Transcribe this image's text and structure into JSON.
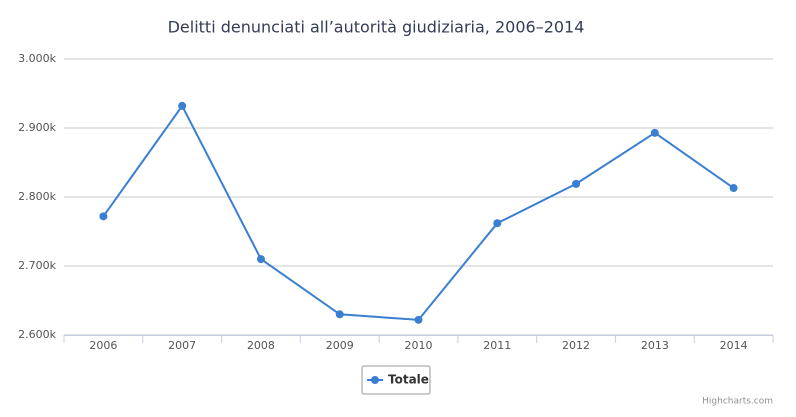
{
  "chart_data": {
    "type": "line",
    "title": "Delitti denunciati all’autorità giudiziaria, 2006–2014",
    "categories": [
      "2006",
      "2007",
      "2008",
      "2009",
      "2010",
      "2011",
      "2012",
      "2013",
      "2014"
    ],
    "series": [
      {
        "name": "Totale",
        "color": "#3a7fd1",
        "values": [
          2772,
          2932,
          2710,
          2630,
          2622,
          2762,
          2819,
          2893,
          2813
        ]
      }
    ],
    "ylim": [
      2600,
      3000
    ],
    "yticks": [
      {
        "value": 2600,
        "label": "2.600k"
      },
      {
        "value": 2700,
        "label": "2.700k"
      },
      {
        "value": 2800,
        "label": "2.800k"
      },
      {
        "value": 2900,
        "label": "2.900k"
      },
      {
        "value": 3000,
        "label": "3.000k"
      }
    ],
    "grid": true,
    "legend": "bottom",
    "credits": "Highcharts.com"
  }
}
